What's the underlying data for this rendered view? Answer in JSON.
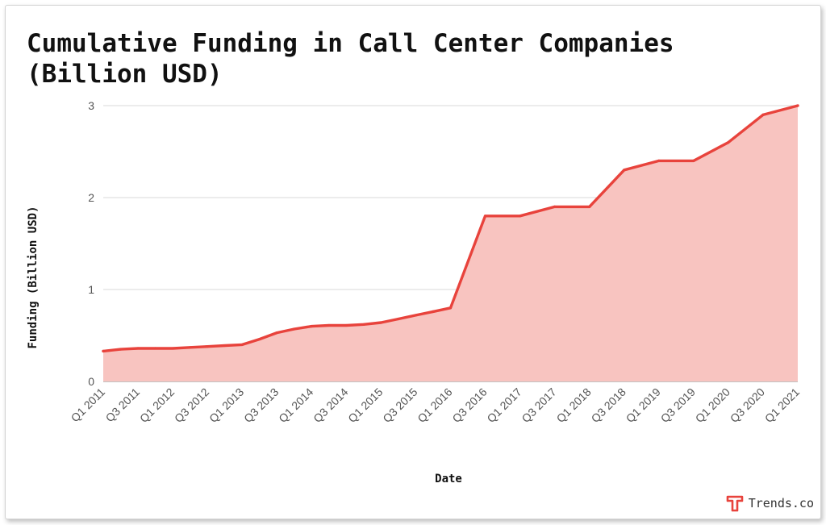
{
  "chart_data": {
    "type": "area",
    "title_line1": "Cumulative Funding in Call Center Companies",
    "title_line2": "(Billion USD)",
    "xlabel": "Date",
    "ylabel": "Funding (Billion USD)",
    "x_tick_labels": [
      "Q1 2011",
      "Q3 2011",
      "Q1 2012",
      "Q3 2012",
      "Q1 2013",
      "Q3 2013",
      "Q1 2014",
      "Q3 2014",
      "Q1 2015",
      "Q3 2015",
      "Q1 2016",
      "Q3 2016",
      "Q1 2017",
      "Q3 2017",
      "Q1 2018",
      "Q3 2018",
      "Q1 2019",
      "Q3 2019",
      "Q1 2020",
      "Q3 2020",
      "Q1 2021"
    ],
    "y_ticks": [
      0,
      1,
      2,
      3
    ],
    "ylim": [
      0,
      3
    ],
    "grid": true,
    "legend": "none",
    "series": [
      {
        "line_color": "#e8433c",
        "fill_color": "#f8c4c0",
        "points": [
          {
            "x": "Q1 2011",
            "y": 0.33
          },
          {
            "x": "Q2 2011",
            "y": 0.35
          },
          {
            "x": "Q3 2011",
            "y": 0.36
          },
          {
            "x": "Q4 2011",
            "y": 0.36
          },
          {
            "x": "Q1 2012",
            "y": 0.36
          },
          {
            "x": "Q2 2012",
            "y": 0.37
          },
          {
            "x": "Q3 2012",
            "y": 0.38
          },
          {
            "x": "Q4 2012",
            "y": 0.39
          },
          {
            "x": "Q1 2013",
            "y": 0.4
          },
          {
            "x": "Q2 2013",
            "y": 0.46
          },
          {
            "x": "Q3 2013",
            "y": 0.53
          },
          {
            "x": "Q4 2013",
            "y": 0.57
          },
          {
            "x": "Q1 2014",
            "y": 0.6
          },
          {
            "x": "Q2 2014",
            "y": 0.61
          },
          {
            "x": "Q3 2014",
            "y": 0.61
          },
          {
            "x": "Q4 2014",
            "y": 0.62
          },
          {
            "x": "Q1 2015",
            "y": 0.64
          },
          {
            "x": "Q2 2015",
            "y": 0.68
          },
          {
            "x": "Q3 2015",
            "y": 0.72
          },
          {
            "x": "Q4 2015",
            "y": 0.76
          },
          {
            "x": "Q1 2016",
            "y": 0.8
          },
          {
            "x": "Q3 2016",
            "y": 1.8
          },
          {
            "x": "Q1 2017",
            "y": 1.8
          },
          {
            "x": "Q3 2017",
            "y": 1.9
          },
          {
            "x": "Q1 2018",
            "y": 1.9
          },
          {
            "x": "Q3 2018",
            "y": 2.3
          },
          {
            "x": "Q1 2019",
            "y": 2.4
          },
          {
            "x": "Q3 2019",
            "y": 2.4
          },
          {
            "x": "Q1 2020",
            "y": 2.6
          },
          {
            "x": "Q3 2020",
            "y": 2.9
          },
          {
            "x": "Q1 2021",
            "y": 3.0
          }
        ]
      }
    ]
  },
  "brand": {
    "name": "Trends.co",
    "logo_icon": "trends-t-logo-icon",
    "accent_color": "#e8433c"
  }
}
